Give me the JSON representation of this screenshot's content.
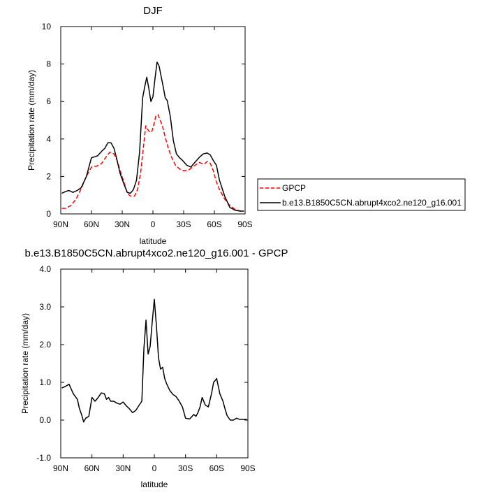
{
  "chart_data": [
    {
      "type": "line",
      "title": "DJF",
      "xlabel": "latitude",
      "ylabel": "Precipitation rate (mm/day)",
      "xlim": [
        90,
        -90
      ],
      "ylim": [
        0,
        10
      ],
      "xticks": [
        90,
        60,
        30,
        0,
        -30,
        -60,
        -90
      ],
      "xtick_labels": [
        "90N",
        "60N",
        "30N",
        "0",
        "30S",
        "60S",
        "90S"
      ],
      "yticks": [
        0,
        2,
        4,
        6,
        8,
        10
      ],
      "ytick_labels": [
        "0",
        "2",
        "4",
        "6",
        "8",
        "10"
      ],
      "grid": false,
      "legend": "right",
      "series": [
        {
          "name": "GPCP",
          "color": "#ff0000",
          "dash": "dashed",
          "x": [
            89,
            85,
            80,
            75,
            70,
            65,
            60,
            55,
            50,
            45,
            42,
            38,
            35,
            32,
            28,
            25,
            22,
            18,
            15,
            12,
            9,
            7,
            5,
            3,
            1,
            -1,
            -3,
            -5,
            -7,
            -9,
            -12,
            -15,
            -18,
            -22,
            -26,
            -30,
            -35,
            -40,
            -45,
            -50,
            -53,
            -56,
            -59,
            -62,
            -65,
            -70,
            -75,
            -80,
            -85,
            -89
          ],
          "y": [
            0.3,
            0.3,
            0.45,
            0.8,
            1.35,
            2.0,
            2.5,
            2.55,
            2.7,
            3.1,
            3.3,
            3.2,
            2.85,
            2.3,
            1.65,
            1.1,
            0.95,
            0.95,
            1.3,
            2.2,
            3.7,
            4.7,
            4.5,
            4.35,
            4.4,
            4.8,
            5.25,
            5.3,
            5.0,
            4.75,
            4.1,
            3.5,
            3.05,
            2.6,
            2.4,
            2.3,
            2.35,
            2.55,
            2.75,
            2.65,
            2.8,
            2.7,
            2.3,
            1.7,
            1.3,
            0.8,
            0.45,
            0.25,
            0.15,
            0.15
          ]
        },
        {
          "name": "b.e13.B1850C5CN.abrupt4xco2.ne120_g16.001",
          "color": "#000000",
          "dash": "solid",
          "x": [
            89,
            85,
            82,
            78,
            74,
            70,
            65,
            60,
            57,
            54,
            50,
            47,
            44,
            41,
            38,
            35,
            32,
            28,
            25,
            22,
            19,
            16,
            13,
            10,
            8,
            6,
            4,
            2,
            0,
            -2,
            -4,
            -6,
            -8,
            -10,
            -12,
            -14,
            -17,
            -20,
            -23,
            -26,
            -29,
            -33,
            -37,
            -41,
            -45,
            -49,
            -53,
            -56,
            -59,
            -62,
            -65,
            -70,
            -75,
            -80,
            -85,
            -89
          ],
          "y": [
            1.1,
            1.2,
            1.25,
            1.15,
            1.25,
            1.4,
            2.0,
            3.0,
            3.05,
            3.1,
            3.35,
            3.5,
            3.8,
            3.8,
            3.5,
            2.85,
            2.15,
            1.55,
            1.15,
            1.1,
            1.3,
            1.8,
            3.3,
            6.2,
            6.8,
            7.3,
            6.7,
            6.0,
            6.25,
            7.2,
            8.1,
            7.9,
            7.35,
            6.8,
            6.2,
            6.05,
            5.2,
            3.9,
            3.2,
            3.0,
            2.85,
            2.6,
            2.5,
            2.75,
            3.0,
            3.2,
            3.25,
            3.15,
            2.85,
            2.6,
            1.8,
            0.95,
            0.35,
            0.2,
            0.15,
            0.15
          ]
        }
      ]
    },
    {
      "type": "line",
      "title": "b.e13.B1850C5CN.abrupt4xco2.ne120_g16.001 - GPCP",
      "xlabel": "latitude",
      "ylabel": "Precipitation rate (mm/day)",
      "xlim": [
        90,
        -90
      ],
      "ylim": [
        -1,
        4
      ],
      "xticks": [
        90,
        60,
        30,
        0,
        -30,
        -60,
        -90
      ],
      "xtick_labels": [
        "90N",
        "60N",
        "30N",
        "0",
        "30S",
        "60S",
        "90S"
      ],
      "yticks": [
        -1,
        0,
        1,
        2,
        3,
        4
      ],
      "ytick_labels": [
        "-1.0",
        "0.0",
        "1.0",
        "2.0",
        "3.0",
        "4.0"
      ],
      "grid": false,
      "series": [
        {
          "color": "#000000",
          "dash": "solid",
          "x": [
            89,
            85,
            82,
            78,
            74,
            72,
            70,
            68,
            66,
            63,
            60,
            57,
            54,
            51,
            48,
            46,
            44,
            42,
            39,
            36,
            33,
            30,
            27,
            24,
            21,
            18,
            15,
            12,
            10,
            8,
            6,
            4,
            2,
            0,
            -2,
            -4,
            -6,
            -8,
            -10,
            -12,
            -15,
            -18,
            -21,
            -24,
            -27,
            -30,
            -34,
            -38,
            -40,
            -42,
            -44,
            -46,
            -49,
            -52,
            -55,
            -57,
            -60,
            -63,
            -66,
            -68,
            -70,
            -73,
            -76,
            -79,
            -82,
            -85,
            -89
          ],
          "y": [
            0.85,
            0.9,
            0.95,
            0.7,
            0.55,
            0.3,
            0.15,
            -0.05,
            0.05,
            0.1,
            0.6,
            0.5,
            0.6,
            0.72,
            0.7,
            0.55,
            0.6,
            0.5,
            0.5,
            0.45,
            0.42,
            0.48,
            0.38,
            0.3,
            0.2,
            0.25,
            0.38,
            0.5,
            1.9,
            2.65,
            1.75,
            1.95,
            2.6,
            3.2,
            2.5,
            1.65,
            1.35,
            1.4,
            1.1,
            0.95,
            0.78,
            0.68,
            0.62,
            0.5,
            0.35,
            0.05,
            0.03,
            0.15,
            0.1,
            0.2,
            0.35,
            0.6,
            0.4,
            0.35,
            0.7,
            1.0,
            1.1,
            0.7,
            0.5,
            0.3,
            0.12,
            0.0,
            0.0,
            0.05,
            0.02,
            0.02,
            0.02
          ]
        }
      ]
    }
  ],
  "legend": {
    "entry_1": "GPCP",
    "entry_2": "b.e13.B1850C5CN.abrupt4xco2.ne120_g16.001"
  }
}
